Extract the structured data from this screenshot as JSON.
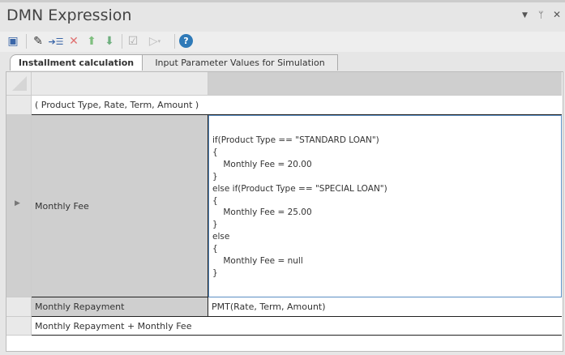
{
  "window": {
    "title": "DMN Expression"
  },
  "toolbar": {
    "icons": [
      "save-icon",
      "edit-icon",
      "add-child-icon",
      "delete-icon",
      "move-up-icon",
      "move-down-icon",
      "validate-icon",
      "run-icon",
      "help-icon"
    ]
  },
  "tabs": [
    {
      "label": "Installment calculation",
      "active": true
    },
    {
      "label": "Input Parameter Values for Simulation",
      "active": false
    }
  ],
  "grid": {
    "parameters": "( Product Type, Rate, Term, Amount )",
    "rows": [
      {
        "name": "Monthly Fee",
        "expression": "if(Product Type == \"STANDARD LOAN\")\n{\n    Monthly Fee = 20.00\n}\nelse if(Product Type == \"SPECIAL LOAN\")\n{\n    Monthly Fee = 25.00\n}\nelse\n{\n    Monthly Fee = null\n}"
      },
      {
        "name": "Monthly Repayment",
        "expression": "PMT(Rate, Term, Amount)"
      }
    ],
    "result": "Monthly Repayment + Monthly Fee"
  },
  "colors": {
    "accent": "#5b8ec4",
    "header_gray": "#cfcfcf"
  }
}
